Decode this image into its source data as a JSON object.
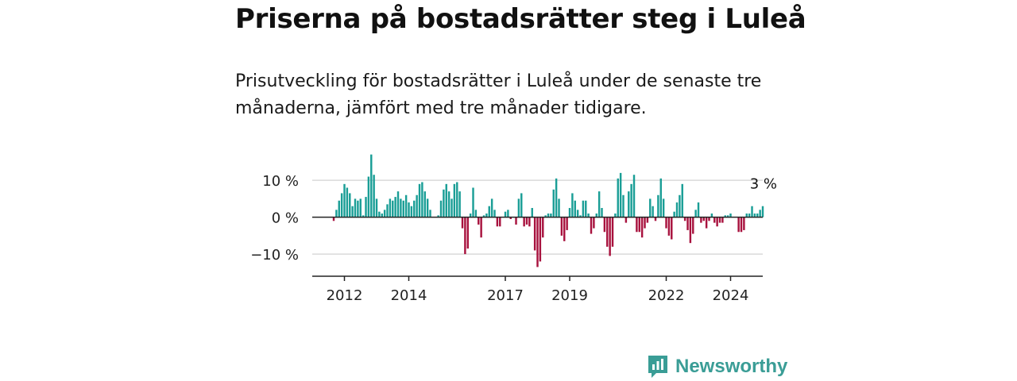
{
  "title": "Priserna på bostadsrätter steg i Luleå",
  "subtitle": "Prisutveckling för bostadsrätter i Luleå under de senaste tre månaderna, jämfört med tre månader tidigare.",
  "brand": {
    "name": "Newsworthy",
    "icon": "newsworthy-logo-icon",
    "color": "#3a9d96"
  },
  "colors": {
    "positive": "#1a9e96",
    "negative": "#a8123e",
    "grid": "#d9d9d9",
    "axis": "#222222"
  },
  "chart_data": {
    "type": "bar",
    "x_start": 2011.667,
    "x_step_months": 1,
    "xlim": [
      2011.0,
      2025.0
    ],
    "ylim": [
      -16,
      18
    ],
    "yticks": [
      10,
      0,
      -10
    ],
    "ytick_labels": [
      "10 %",
      "0 %",
      "−10 %"
    ],
    "xticks": [
      2012,
      2014,
      2017,
      2019,
      2022,
      2024
    ],
    "xtick_labels": [
      "2012",
      "2014",
      "2017",
      "2019",
      "2022",
      "2024"
    ],
    "annotation": {
      "label": "3 %",
      "value": 3
    },
    "values": [
      -1,
      2,
      4.5,
      6.5,
      9,
      8,
      6.5,
      3,
      5,
      4.5,
      5,
      0.5,
      5.5,
      11,
      17,
      11.5,
      5,
      1.5,
      1,
      2,
      3.5,
      5,
      4.5,
      5.5,
      7,
      5,
      4.5,
      6,
      4,
      3,
      4.5,
      6,
      9,
      9.5,
      7,
      5,
      2,
      0,
      0,
      0.5,
      4.5,
      7.5,
      9,
      7,
      5,
      9,
      9.5,
      7,
      -3,
      -10,
      -8.5,
      1,
      8,
      2,
      -2,
      -5.5,
      0.5,
      1,
      3,
      5,
      2,
      -2.5,
      -2.5,
      0,
      1.5,
      2,
      -0.5,
      0,
      -2,
      5,
      6.5,
      -2.5,
      -2,
      -2.5,
      2.5,
      -9,
      -13.5,
      -12,
      -5.5,
      0.5,
      1,
      1,
      7.5,
      10.5,
      5,
      -5,
      -6.5,
      -3.5,
      2.5,
      6.5,
      4.5,
      2,
      0.5,
      4.5,
      4.5,
      1,
      -4.5,
      -3,
      1,
      7,
      2.5,
      -4,
      -8,
      -10.5,
      -8,
      1,
      10.5,
      12,
      6,
      -1.5,
      7,
      9,
      11.5,
      -4,
      -4,
      -5.5,
      -3,
      -1.5,
      5,
      3,
      -1,
      6,
      10.5,
      5,
      -3,
      -5,
      -6,
      1.5,
      4,
      6,
      9,
      -1,
      -3.5,
      -7,
      -4.5,
      2,
      4,
      -1.5,
      -1,
      -3,
      -1,
      1,
      -1.5,
      -2.5,
      -1.5,
      -1.5,
      0.5,
      0.5,
      1,
      0,
      0,
      -4,
      -4,
      -3.5,
      1,
      1,
      3,
      1,
      1,
      2,
      3
    ]
  }
}
